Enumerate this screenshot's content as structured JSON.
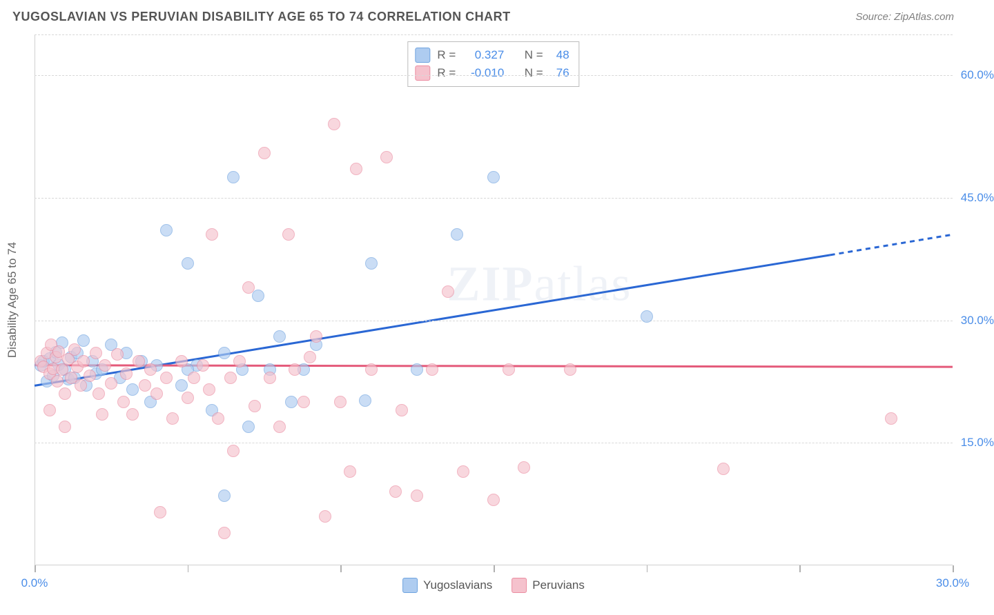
{
  "header": {
    "title": "YUGOSLAVIAN VS PERUVIAN DISABILITY AGE 65 TO 74 CORRELATION CHART",
    "source": "Source: ZipAtlas.com"
  },
  "watermark": "ZIPatlas",
  "chart": {
    "type": "scatter",
    "ylabel": "Disability Age 65 to 74",
    "xlim": [
      0,
      30
    ],
    "ylim": [
      0,
      65
    ],
    "xticks": [
      0,
      5,
      10,
      15,
      20,
      25,
      30
    ],
    "xtick_labels": {
      "0": "0.0%",
      "30": "30.0%"
    },
    "yticks": [
      15,
      30,
      45,
      60
    ],
    "ytick_labels": {
      "15": "15.0%",
      "30": "30.0%",
      "45": "45.0%",
      "60": "60.0%"
    },
    "grid_color": "#d8d8d8",
    "background_color": "#ffffff",
    "axis_color": "#d0d0d0",
    "label_color": "#4a8de8",
    "marker_size": 18,
    "series": [
      {
        "name": "Yugoslavians",
        "fill": "#aeccf0",
        "stroke": "#6fa3df",
        "line_color": "#2a67d4",
        "r": "0.327",
        "n": "48",
        "trend": {
          "x1": 0,
          "y1": 22,
          "x2": 26,
          "y2": 38,
          "dash_from_x": 26,
          "x3": 30,
          "y3": 40.5
        },
        "points": [
          [
            0.2,
            24.5
          ],
          [
            0.3,
            25
          ],
          [
            0.4,
            22.5
          ],
          [
            0.5,
            25.3
          ],
          [
            0.6,
            23.2
          ],
          [
            0.7,
            26.1
          ],
          [
            0.8,
            24.6
          ],
          [
            0.9,
            27.3
          ],
          [
            1.0,
            24.0
          ],
          [
            1.1,
            22.8
          ],
          [
            1.2,
            25.5
          ],
          [
            1.3,
            23.0
          ],
          [
            1.4,
            26.0
          ],
          [
            1.6,
            27.5
          ],
          [
            1.7,
            22.0
          ],
          [
            1.9,
            25.0
          ],
          [
            2.0,
            23.5
          ],
          [
            2.2,
            24.0
          ],
          [
            2.5,
            27.0
          ],
          [
            2.8,
            23.0
          ],
          [
            3.0,
            26.0
          ],
          [
            3.2,
            21.5
          ],
          [
            3.5,
            25.0
          ],
          [
            3.8,
            20.0
          ],
          [
            4.0,
            24.5
          ],
          [
            4.3,
            41.0
          ],
          [
            4.8,
            22.0
          ],
          [
            5.0,
            37.0
          ],
          [
            5.3,
            24.5
          ],
          [
            5.8,
            19.0
          ],
          [
            6.2,
            26.0
          ],
          [
            6.5,
            47.5
          ],
          [
            6.8,
            24.0
          ],
          [
            7.0,
            17.0
          ],
          [
            7.3,
            33.0
          ],
          [
            7.7,
            24.0
          ],
          [
            8.0,
            28.0
          ],
          [
            8.4,
            20.0
          ],
          [
            8.8,
            24.0
          ],
          [
            9.2,
            27.0
          ],
          [
            10.8,
            20.2
          ],
          [
            11.0,
            37.0
          ],
          [
            12.5,
            24.0
          ],
          [
            13.8,
            40.5
          ],
          [
            15.0,
            47.5
          ],
          [
            20.0,
            30.5
          ],
          [
            5.0,
            24.0
          ],
          [
            6.2,
            8.5
          ]
        ]
      },
      {
        "name": "Peruvians",
        "fill": "#f5c2cd",
        "stroke": "#eb8ca0",
        "line_color": "#e45a7a",
        "r": "-0.010",
        "n": "76",
        "trend": {
          "x1": 0,
          "y1": 24.5,
          "x2": 30,
          "y2": 24.3
        },
        "points": [
          [
            0.2,
            25.0
          ],
          [
            0.3,
            24.3
          ],
          [
            0.4,
            26.0
          ],
          [
            0.5,
            23.5
          ],
          [
            0.55,
            27.0
          ],
          [
            0.6,
            24.1
          ],
          [
            0.7,
            25.5
          ],
          [
            0.75,
            22.5
          ],
          [
            0.8,
            26.2
          ],
          [
            0.9,
            24.0
          ],
          [
            1.0,
            21.0
          ],
          [
            1.1,
            25.2
          ],
          [
            1.2,
            23.0
          ],
          [
            1.3,
            26.4
          ],
          [
            1.4,
            24.3
          ],
          [
            1.5,
            22.0
          ],
          [
            1.6,
            25.0
          ],
          [
            1.8,
            23.2
          ],
          [
            2.0,
            26.0
          ],
          [
            2.1,
            21.0
          ],
          [
            2.3,
            24.5
          ],
          [
            2.5,
            22.3
          ],
          [
            2.7,
            25.8
          ],
          [
            2.9,
            20.0
          ],
          [
            3.0,
            23.5
          ],
          [
            3.2,
            18.5
          ],
          [
            3.4,
            25.0
          ],
          [
            3.6,
            22.0
          ],
          [
            3.8,
            24.0
          ],
          [
            4.0,
            21.0
          ],
          [
            4.1,
            6.5
          ],
          [
            4.3,
            23.0
          ],
          [
            4.5,
            18.0
          ],
          [
            4.8,
            25.0
          ],
          [
            5.0,
            20.5
          ],
          [
            5.2,
            23.0
          ],
          [
            5.5,
            24.5
          ],
          [
            5.7,
            21.5
          ],
          [
            5.8,
            40.5
          ],
          [
            6.0,
            18.0
          ],
          [
            6.2,
            4.0
          ],
          [
            6.4,
            23.0
          ],
          [
            6.5,
            14.0
          ],
          [
            6.7,
            25.0
          ],
          [
            7.0,
            34.0
          ],
          [
            7.2,
            19.5
          ],
          [
            7.5,
            50.5
          ],
          [
            7.7,
            23.0
          ],
          [
            8.0,
            17.0
          ],
          [
            8.3,
            40.5
          ],
          [
            8.5,
            24.0
          ],
          [
            8.8,
            20.0
          ],
          [
            9.0,
            25.5
          ],
          [
            9.2,
            28.0
          ],
          [
            9.5,
            6.0
          ],
          [
            9.8,
            54.0
          ],
          [
            10.0,
            20.0
          ],
          [
            10.5,
            48.5
          ],
          [
            10.3,
            11.5
          ],
          [
            11.0,
            24.0
          ],
          [
            11.5,
            50.0
          ],
          [
            11.8,
            9.0
          ],
          [
            12.0,
            19.0
          ],
          [
            12.5,
            8.5
          ],
          [
            13.0,
            24.0
          ],
          [
            13.5,
            33.5
          ],
          [
            14.0,
            11.5
          ],
          [
            15.0,
            8.0
          ],
          [
            15.5,
            24.0
          ],
          [
            16.0,
            12.0
          ],
          [
            17.5,
            24.0
          ],
          [
            22.5,
            11.8
          ],
          [
            28.0,
            18.0
          ],
          [
            2.2,
            18.5
          ],
          [
            1.0,
            17.0
          ],
          [
            0.5,
            19.0
          ]
        ]
      }
    ]
  }
}
